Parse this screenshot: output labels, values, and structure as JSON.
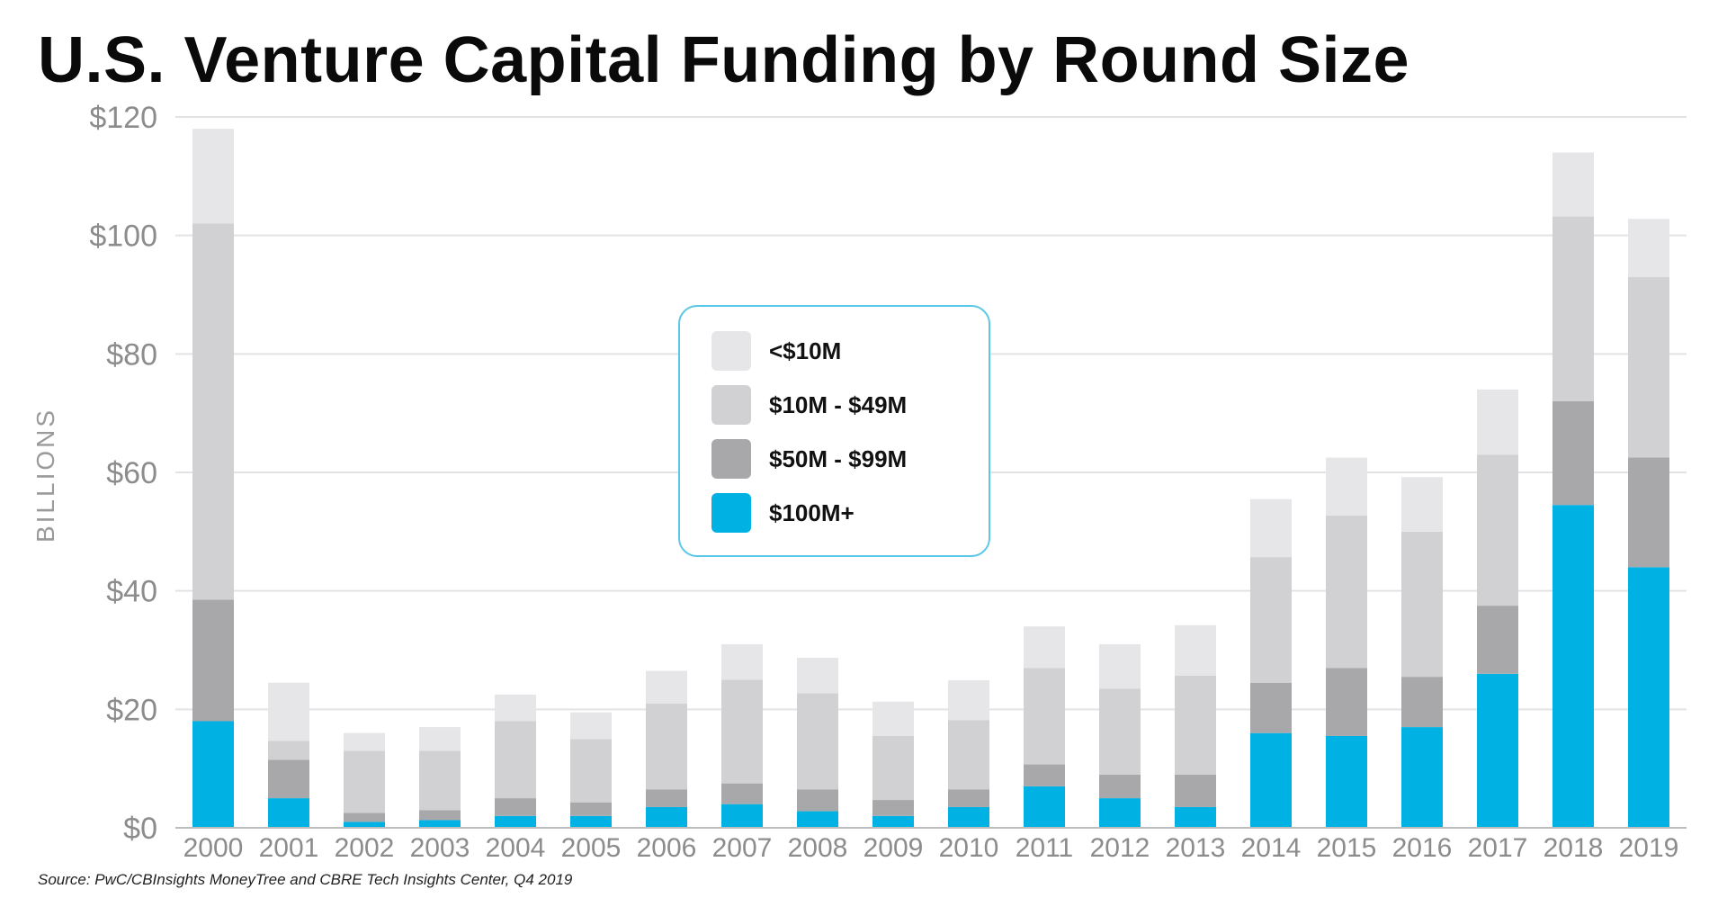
{
  "header": {
    "title": "U.S. Venture Capital Funding by Round Size"
  },
  "footer": {
    "source": "Source: PwC/CBInsights MoneyTree and CBRE Tech Insights Center, Q4 2019"
  },
  "chart_data": {
    "type": "bar",
    "stacked": true,
    "title": "U.S. Venture Capital Funding by Round Size",
    "xlabel": "",
    "ylabel": "BILLIONS",
    "ylim": [
      0,
      120
    ],
    "yticks": [
      0,
      20,
      40,
      60,
      80,
      100,
      120
    ],
    "ytick_labels": [
      "$0",
      "$20",
      "$40",
      "$60",
      "$80",
      "$100",
      "$120"
    ],
    "grid": true,
    "legend_position": "center",
    "categories": [
      "2000",
      "2001",
      "2002",
      "2003",
      "2004",
      "2005",
      "2006",
      "2007",
      "2008",
      "2009",
      "2010",
      "2011",
      "2012",
      "2013",
      "2014",
      "2015",
      "2016",
      "2017",
      "2018",
      "2019"
    ],
    "series": [
      {
        "name": "$100M+",
        "color": "#00b2e3",
        "values": [
          18,
          5,
          1,
          1.3,
          2,
          2,
          3.5,
          4,
          2.8,
          2,
          3.5,
          7,
          5,
          3.5,
          16,
          15.5,
          17,
          26,
          54.5,
          44
        ]
      },
      {
        "name": "$50M - $99M",
        "color": "#a8a8ab",
        "values": [
          20.5,
          6.5,
          1.5,
          1.7,
          3,
          2.3,
          3,
          3.5,
          3.7,
          2.7,
          3,
          3.7,
          4,
          5.5,
          8.5,
          11.5,
          8.5,
          11.5,
          17.5,
          18.5
        ]
      },
      {
        "name": "$10M - $49M",
        "color": "#d1d1d3",
        "values": [
          63.5,
          3.2,
          10.5,
          10,
          13,
          10.7,
          14.5,
          17.5,
          16.2,
          10.8,
          11.7,
          16.3,
          14.5,
          16.7,
          21.2,
          25.7,
          24.5,
          25.5,
          31.2,
          30.5
        ]
      },
      {
        "name": "<$10M",
        "color": "#e6e6e8",
        "values": [
          16,
          9.8,
          3,
          4,
          4.5,
          4.5,
          5.5,
          6,
          6,
          5.8,
          6.7,
          7,
          7.5,
          8.5,
          9.8,
          9.8,
          9.2,
          11,
          10.8,
          9.8
        ]
      }
    ],
    "legend": {
      "border_color": "#5cc8e8",
      "items": [
        {
          "label": "<$10M",
          "color": "#e6e6e8"
        },
        {
          "label": "$10M - $49M",
          "color": "#d1d1d3"
        },
        {
          "label": "$50M - $99M",
          "color": "#a8a8ab"
        },
        {
          "label": "$100M+",
          "color": "#00b2e3"
        }
      ]
    },
    "grid_color": "#e3e3e3"
  }
}
